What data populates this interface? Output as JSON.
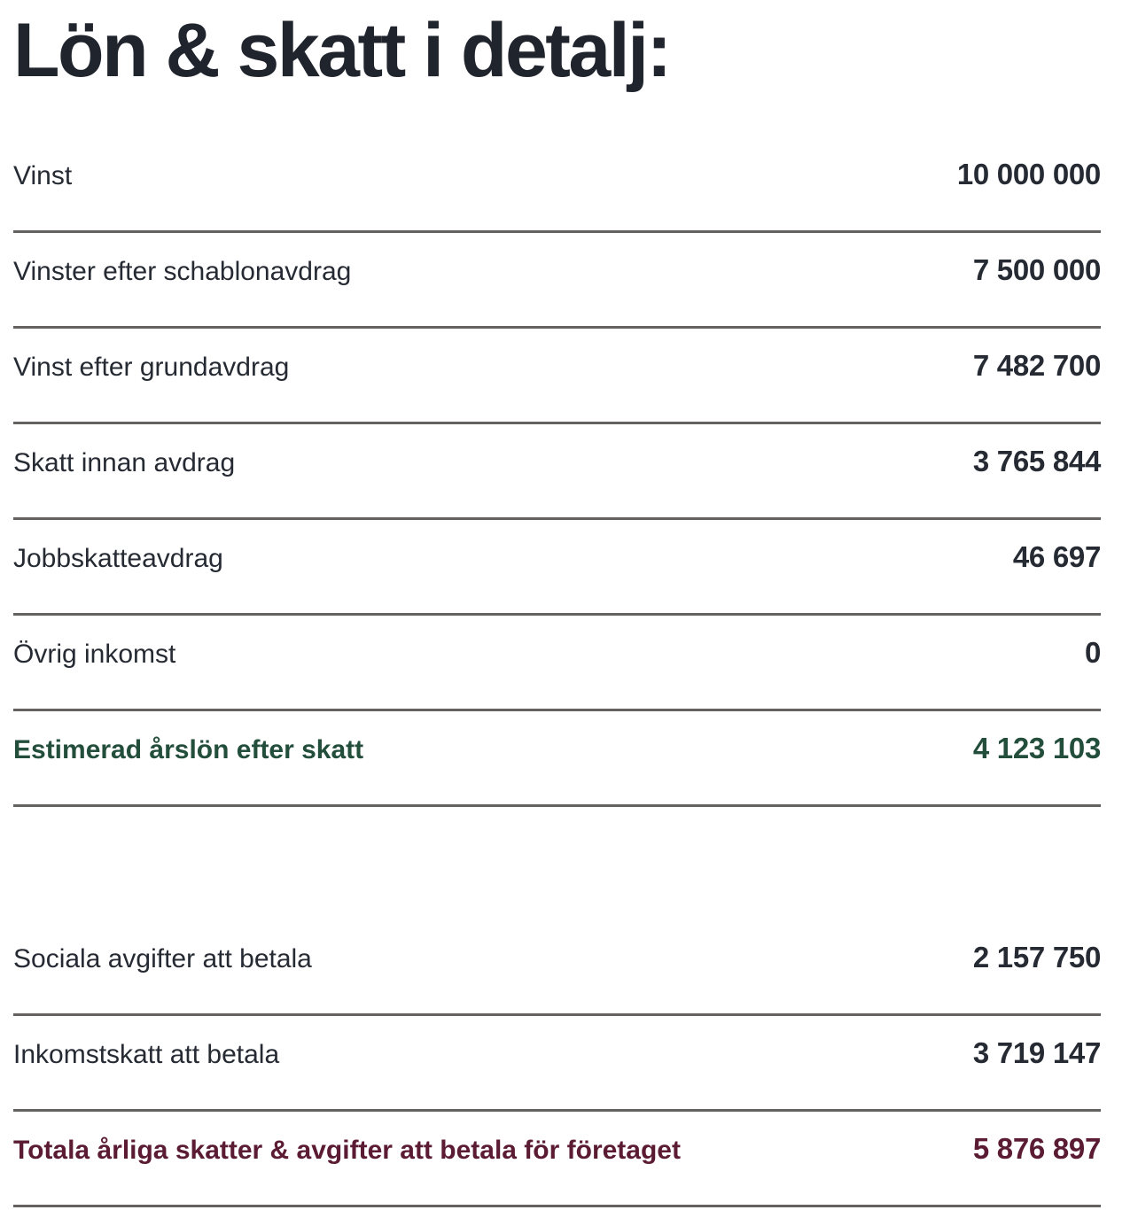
{
  "page": {
    "title": "Lön & skatt i detalj:",
    "colors": {
      "background": "#ffffff",
      "text": "#252a33",
      "title": "#20242d",
      "positive": "#234e3c",
      "negative": "#5a1b33",
      "divider": "#63625e"
    }
  },
  "table": {
    "main_rows": [
      {
        "label": "Vinst",
        "value": "10 000 000"
      },
      {
        "label": "Vinster efter schablonavdrag",
        "value": "7 500 000"
      },
      {
        "label": "Vinst efter grundavdrag",
        "value": "7 482 700"
      },
      {
        "label": "Skatt innan avdrag",
        "value": "3 765 844"
      },
      {
        "label": "Jobbskatteavdrag",
        "value": "46 697"
      },
      {
        "label": "Övrig inkomst",
        "value": "0"
      },
      {
        "label": "Estimerad årslön efter skatt",
        "value": "4 123 103"
      }
    ],
    "company_rows": [
      {
        "label": "Sociala avgifter att betala",
        "value": "2 157 750"
      },
      {
        "label": "Inkomstskatt att betala",
        "value": "3 719 147"
      },
      {
        "label": "Totala årliga skatter & avgifter att betala för företaget",
        "value": "5 876 897"
      }
    ]
  }
}
